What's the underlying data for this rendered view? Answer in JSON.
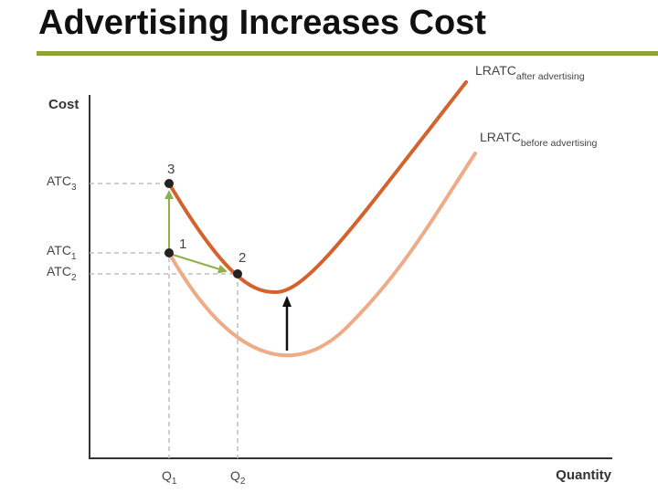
{
  "title": "Advertising Increases Cost",
  "colors": {
    "rule": "#8aa536",
    "curve_after": "#d4622c",
    "curve_before": "#eeab86",
    "arrow_green": "#8db04a",
    "guide": "#bdbdbd",
    "axis": "#333333"
  },
  "axes": {
    "y_label": "Cost",
    "x_label": "Quantity"
  },
  "ticks": {
    "y": [
      {
        "base": "ATC",
        "sub": "3"
      },
      {
        "base": "ATC",
        "sub": "1"
      },
      {
        "base": "ATC",
        "sub": "2"
      }
    ],
    "x": [
      {
        "base": "Q",
        "sub": "1"
      },
      {
        "base": "Q",
        "sub": "2"
      }
    ]
  },
  "curves": {
    "after": {
      "base": "LRATC",
      "sub": "after advertising"
    },
    "before": {
      "base": "LRATC",
      "sub": "before advertising"
    }
  },
  "points": {
    "p3": "3",
    "p1": "1",
    "p2": "2"
  }
}
